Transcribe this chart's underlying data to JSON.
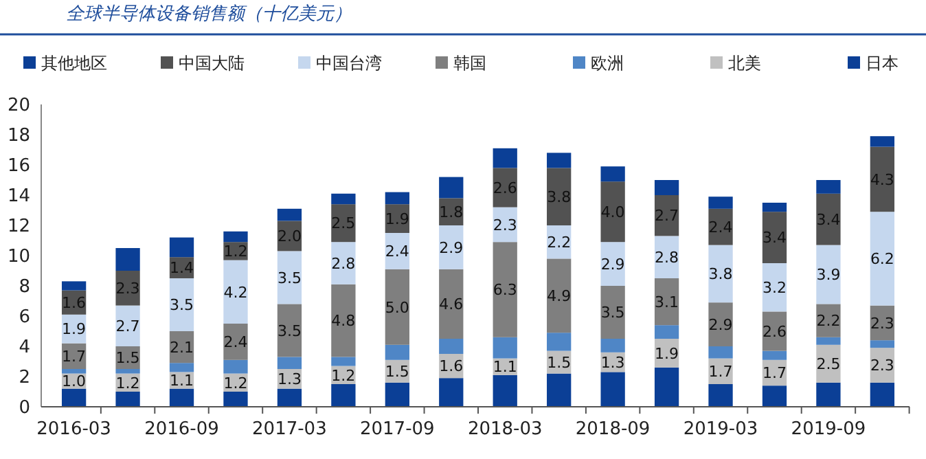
{
  "chart_data": {
    "type": "bar",
    "title": "全球半导体设备销售额（十亿美元）",
    "stacked": true,
    "legend": "top",
    "data_labels": false,
    "categories": [
      "2016-03",
      null,
      "2016-09",
      null,
      "2017-03",
      null,
      "2017-09",
      null,
      "2018-03",
      null,
      "2018-09",
      null,
      "2019-03",
      null,
      "2019-09",
      null
    ],
    "ylim": [
      0,
      20
    ],
    "yticks": [
      0,
      2,
      4,
      6,
      8,
      10,
      12,
      14,
      16,
      18,
      20
    ],
    "series": [
      {
        "name": "日本",
        "color": "#0b3f96",
        "values": [
          1.2,
          1.0,
          1.2,
          1.0,
          1.2,
          1.5,
          1.6,
          1.9,
          2.1,
          2.2,
          2.3,
          2.6,
          1.5,
          1.4,
          1.6,
          1.6
        ]
      },
      {
        "name": "北美",
        "color": "#c0c0c0",
        "values": [
          1.0,
          1.2,
          1.1,
          1.2,
          1.3,
          1.2,
          1.5,
          1.6,
          1.1,
          1.5,
          1.3,
          1.9,
          1.7,
          1.7,
          2.5,
          2.3
        ],
        "value_labels": [
          "1.0",
          "1.2",
          "1.1",
          "1.2",
          "1.3",
          "1.2",
          "1.5",
          "1.6",
          "1.1",
          "1.5",
          "1.3",
          "1.9",
          "1.7",
          "1.7",
          "2.5",
          "2.3"
        ]
      },
      {
        "name": "欧洲",
        "color": "#4f86c6",
        "values": [
          0.3,
          0.3,
          0.6,
          0.9,
          0.8,
          0.6,
          1.0,
          1.0,
          1.4,
          1.2,
          0.9,
          0.9,
          0.8,
          0.6,
          0.5,
          0.5
        ]
      },
      {
        "name": "韩国",
        "color": "#7f7f7f",
        "values": [
          1.7,
          1.5,
          2.1,
          2.4,
          3.5,
          4.8,
          5.0,
          4.6,
          6.3,
          4.9,
          3.5,
          3.1,
          2.9,
          2.6,
          2.2,
          2.3
        ],
        "value_labels": [
          "1.7",
          "1.5",
          "2.1",
          "2.4",
          "3.5",
          "4.8",
          "5.0",
          "4.6",
          "6.3",
          "4.9",
          "3.5",
          "3.1",
          "2.9",
          "2.6",
          "2.2",
          "2.3"
        ]
      },
      {
        "name": "中国台湾",
        "color": "#c5d7ee",
        "values": [
          1.9,
          2.7,
          3.5,
          4.2,
          3.5,
          2.8,
          2.4,
          2.9,
          2.3,
          2.2,
          2.9,
          2.8,
          3.8,
          3.2,
          3.9,
          6.2
        ],
        "value_labels": [
          "1.9",
          "2.7",
          "3.5",
          "4.2",
          "3.5",
          "2.8",
          "2.4",
          "2.9",
          "2.3",
          "2.2",
          "2.9",
          "2.8",
          "3.8",
          "3.2",
          "3.9",
          "6.2"
        ]
      },
      {
        "name": "中国大陆",
        "color": "#525252",
        "values": [
          1.6,
          2.3,
          1.4,
          1.2,
          2.0,
          2.5,
          1.9,
          1.8,
          2.6,
          3.8,
          4.0,
          2.7,
          2.4,
          3.4,
          3.4,
          4.3
        ],
        "value_labels": [
          "1.6",
          "2.3",
          "1.4",
          "1.2",
          "2.0",
          "2.5",
          "1.9",
          "1.8",
          "2.6",
          "3.8",
          "4.0",
          "2.7",
          "2.4",
          "3.4",
          "3.4",
          "4.3"
        ]
      },
      {
        "name": "其他地区",
        "color": "#0b3f96",
        "values": [
          0.6,
          1.5,
          1.3,
          0.7,
          0.8,
          0.7,
          0.8,
          1.4,
          1.3,
          1.0,
          1.0,
          1.0,
          0.8,
          0.6,
          0.9,
          0.7
        ]
      }
    ]
  }
}
